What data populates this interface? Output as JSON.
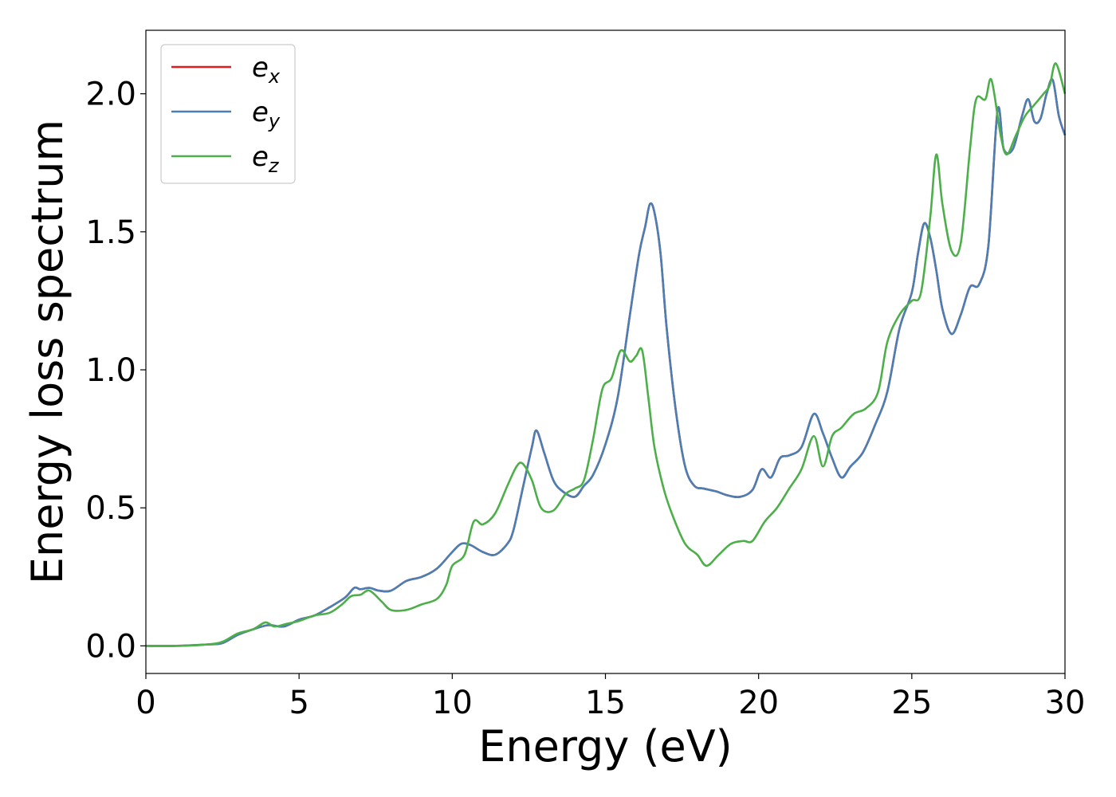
{
  "chart_data": {
    "type": "line",
    "title": "",
    "xlabel": "Energy (eV)",
    "ylabel": "Energy loss spectrum",
    "xlim": [
      0,
      30
    ],
    "ylim": [
      -0.1,
      2.23
    ],
    "xticks": [
      0,
      5,
      10,
      15,
      20,
      25,
      30
    ],
    "xtick_labels": [
      "0",
      "5",
      "10",
      "15",
      "20",
      "25",
      "30"
    ],
    "yticks": [
      0.0,
      0.5,
      1.0,
      1.5,
      2.0
    ],
    "ytick_labels": [
      "0.0",
      "0.5",
      "1.0",
      "1.5",
      "2.0"
    ],
    "grid": false,
    "legend": {
      "position": "top-left",
      "entries": [
        "e_x",
        "e_y",
        "e_z"
      ]
    },
    "series": [
      {
        "name": "e_x",
        "legend_base": "e",
        "legend_sub": "x",
        "color": "#e41a1c",
        "x": [
          0,
          1,
          2,
          2.5,
          3,
          3.5,
          4,
          4.5,
          5,
          5.5,
          6,
          6.5,
          6.8,
          7,
          7.3,
          7.6,
          8,
          8.5,
          9,
          9.5,
          10,
          10.3,
          10.6,
          11,
          11.4,
          11.8,
          12,
          12.3,
          12.6,
          12.75,
          13,
          13.3,
          13.6,
          14,
          14.3,
          14.6,
          15,
          15.4,
          15.8,
          16.1,
          16.3,
          16.45,
          16.6,
          16.8,
          17,
          17.3,
          17.6,
          17.9,
          18.2,
          18.6,
          19,
          19.4,
          19.8,
          20.1,
          20.4,
          20.7,
          21,
          21.4,
          21.8,
          22.1,
          22.4,
          22.7,
          23,
          23.4,
          23.8,
          24.2,
          24.6,
          25,
          25.2,
          25.4,
          25.6,
          25.8,
          26,
          26.3,
          26.6,
          26.9,
          27.2,
          27.5,
          27.8,
          28,
          28.3,
          28.6,
          28.8,
          29,
          29.2,
          29.4,
          29.6,
          29.8,
          30
        ],
        "y": [
          0,
          0,
          0.005,
          0.01,
          0.04,
          0.06,
          0.075,
          0.07,
          0.095,
          0.11,
          0.14,
          0.175,
          0.21,
          0.205,
          0.21,
          0.2,
          0.2,
          0.235,
          0.25,
          0.28,
          0.34,
          0.37,
          0.365,
          0.34,
          0.33,
          0.37,
          0.42,
          0.57,
          0.72,
          0.78,
          0.7,
          0.6,
          0.56,
          0.54,
          0.58,
          0.62,
          0.73,
          0.9,
          1.2,
          1.42,
          1.52,
          1.6,
          1.57,
          1.42,
          1.15,
          0.85,
          0.65,
          0.58,
          0.57,
          0.56,
          0.545,
          0.54,
          0.565,
          0.64,
          0.61,
          0.68,
          0.69,
          0.72,
          0.84,
          0.77,
          0.68,
          0.61,
          0.65,
          0.7,
          0.8,
          0.92,
          1.15,
          1.28,
          1.42,
          1.53,
          1.48,
          1.36,
          1.22,
          1.13,
          1.2,
          1.3,
          1.31,
          1.45,
          1.94,
          1.8,
          1.8,
          1.92,
          1.98,
          1.9,
          1.91,
          2.0,
          2.05,
          1.92,
          1.85
        ]
      },
      {
        "name": "e_y",
        "legend_base": "e",
        "legend_sub": "y",
        "color": "#4a7fb5",
        "x": [
          0,
          1,
          2,
          2.5,
          3,
          3.5,
          4,
          4.5,
          5,
          5.5,
          6,
          6.5,
          6.8,
          7,
          7.3,
          7.6,
          8,
          8.5,
          9,
          9.5,
          10,
          10.3,
          10.6,
          11,
          11.4,
          11.8,
          12,
          12.3,
          12.6,
          12.75,
          13,
          13.3,
          13.6,
          14,
          14.3,
          14.6,
          15,
          15.4,
          15.8,
          16.1,
          16.3,
          16.45,
          16.6,
          16.8,
          17,
          17.3,
          17.6,
          17.9,
          18.2,
          18.6,
          19,
          19.4,
          19.8,
          20.1,
          20.4,
          20.7,
          21,
          21.4,
          21.8,
          22.1,
          22.4,
          22.7,
          23,
          23.4,
          23.8,
          24.2,
          24.6,
          25,
          25.2,
          25.4,
          25.6,
          25.8,
          26,
          26.3,
          26.6,
          26.9,
          27.2,
          27.5,
          27.8,
          28,
          28.3,
          28.6,
          28.8,
          29,
          29.2,
          29.4,
          29.6,
          29.8,
          30
        ],
        "y": [
          0,
          0,
          0.005,
          0.01,
          0.04,
          0.06,
          0.075,
          0.07,
          0.095,
          0.11,
          0.14,
          0.175,
          0.21,
          0.205,
          0.21,
          0.2,
          0.2,
          0.235,
          0.25,
          0.28,
          0.34,
          0.37,
          0.365,
          0.34,
          0.33,
          0.37,
          0.42,
          0.57,
          0.72,
          0.78,
          0.7,
          0.6,
          0.56,
          0.54,
          0.58,
          0.62,
          0.73,
          0.9,
          1.2,
          1.42,
          1.52,
          1.6,
          1.57,
          1.42,
          1.15,
          0.85,
          0.65,
          0.58,
          0.57,
          0.56,
          0.545,
          0.54,
          0.565,
          0.64,
          0.61,
          0.68,
          0.69,
          0.72,
          0.84,
          0.77,
          0.68,
          0.61,
          0.65,
          0.7,
          0.8,
          0.92,
          1.15,
          1.28,
          1.42,
          1.53,
          1.48,
          1.36,
          1.22,
          1.13,
          1.2,
          1.3,
          1.31,
          1.45,
          1.94,
          1.8,
          1.8,
          1.92,
          1.98,
          1.9,
          1.91,
          2.0,
          2.05,
          1.92,
          1.85
        ]
      },
      {
        "name": "e_z",
        "legend_base": "e",
        "legend_sub": "z",
        "color": "#4daf4a",
        "x": [
          0,
          1,
          2,
          2.5,
          3,
          3.5,
          3.9,
          4.2,
          4.6,
          5,
          5.5,
          6,
          6.4,
          6.7,
          7,
          7.3,
          7.7,
          8,
          8.5,
          9,
          9.5,
          9.8,
          10,
          10.4,
          10.7,
          11,
          11.4,
          11.8,
          12.1,
          12.3,
          12.6,
          12.9,
          13.3,
          13.7,
          14,
          14.3,
          14.6,
          14.9,
          15.2,
          15.5,
          15.8,
          16,
          16.2,
          16.4,
          16.6,
          16.9,
          17.2,
          17.6,
          18,
          18.3,
          18.7,
          19.1,
          19.5,
          19.8,
          20.2,
          20.6,
          21,
          21.4,
          21.8,
          22.1,
          22.4,
          22.7,
          23.1,
          23.5,
          23.9,
          24.2,
          24.6,
          25,
          25.3,
          25.6,
          25.8,
          26,
          26.3,
          26.6,
          26.9,
          27.1,
          27.4,
          27.6,
          27.9,
          28.1,
          28.4,
          28.7,
          29,
          29.3,
          29.5,
          29.7,
          30
        ],
        "y": [
          0,
          0,
          0.005,
          0.015,
          0.045,
          0.06,
          0.085,
          0.07,
          0.08,
          0.09,
          0.11,
          0.12,
          0.15,
          0.18,
          0.185,
          0.2,
          0.16,
          0.13,
          0.13,
          0.15,
          0.17,
          0.22,
          0.29,
          0.33,
          0.45,
          0.44,
          0.48,
          0.58,
          0.65,
          0.66,
          0.6,
          0.5,
          0.49,
          0.55,
          0.57,
          0.6,
          0.75,
          0.93,
          0.97,
          1.07,
          1.03,
          1.05,
          1.07,
          0.9,
          0.72,
          0.57,
          0.47,
          0.37,
          0.33,
          0.29,
          0.33,
          0.37,
          0.38,
          0.38,
          0.45,
          0.5,
          0.57,
          0.64,
          0.76,
          0.65,
          0.76,
          0.79,
          0.84,
          0.86,
          0.92,
          1.1,
          1.2,
          1.25,
          1.28,
          1.55,
          1.78,
          1.6,
          1.43,
          1.46,
          1.8,
          1.98,
          1.98,
          2.05,
          1.85,
          1.78,
          1.85,
          1.92,
          1.96,
          2.0,
          2.03,
          2.11,
          2.0
        ]
      }
    ]
  }
}
